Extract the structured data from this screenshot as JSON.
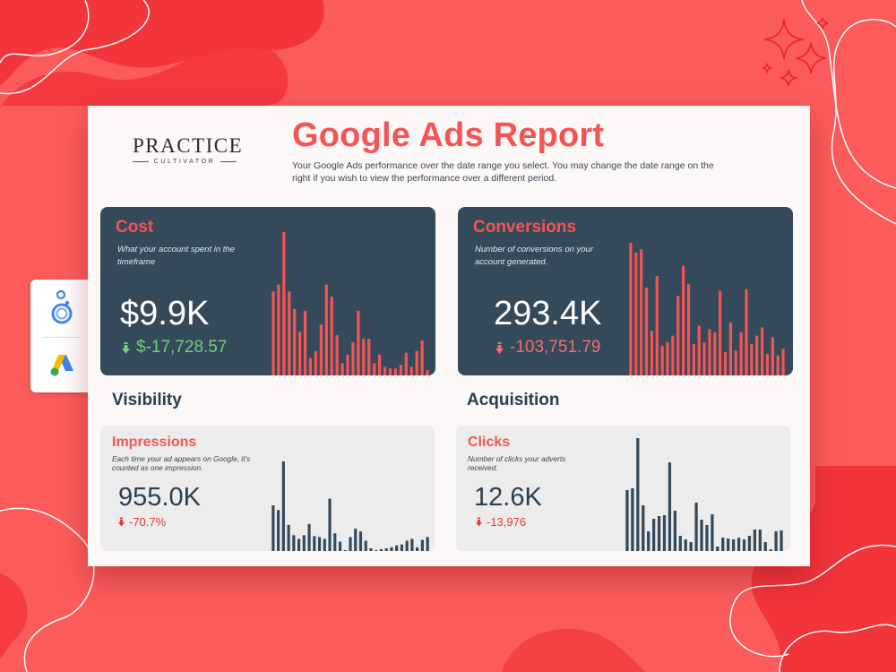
{
  "report": {
    "title": "Google Ads Report",
    "subtitle": "Your Google Ads performance over the date range you select. You may change the date range on the right if you wish to view the performance over a different period.",
    "logo": {
      "name": "PRACTICE",
      "tagline": "CULTIVATOR"
    }
  },
  "side_panel": {
    "icons": [
      "looker-studio-icon",
      "google-ads-icon"
    ]
  },
  "cards": {
    "cost": {
      "title": "Cost",
      "description": "What your account spent in the timeframe",
      "value": "$9.9K",
      "delta": "$-17,728.57",
      "delta_color": "#6fcf7a",
      "bars": [
        48,
        52,
        82,
        48,
        38,
        25,
        37,
        10,
        14,
        29,
        52,
        45,
        23,
        7,
        12,
        19,
        37,
        21,
        21,
        7,
        12,
        5,
        4,
        4,
        6,
        13,
        5,
        14,
        20,
        3
      ]
    },
    "conversions": {
      "title": "Conversions",
      "description": "Number of conversions on your account generated.",
      "value": "293.4K",
      "delta": "-103,751.79",
      "delta_color": "#f0706f",
      "bars": [
        80,
        74,
        76,
        53,
        27,
        60,
        18,
        20,
        24,
        48,
        66,
        55,
        19,
        30,
        20,
        28,
        26,
        51,
        14,
        32,
        15,
        26,
        52,
        19,
        24,
        29,
        13,
        23,
        12,
        16
      ]
    },
    "impressions": {
      "title": "Impressions",
      "description": "Each time your ad appears on Google, it's counted as one impression.",
      "value": "955.0K",
      "delta": "-70.7%",
      "bars": [
        49,
        44,
        96,
        28,
        17,
        13,
        17,
        29,
        16,
        15,
        13,
        56,
        19,
        10,
        1,
        15,
        24,
        21,
        11,
        3,
        1,
        2,
        3,
        4,
        6,
        7,
        11,
        13,
        4,
        12,
        15
      ]
    },
    "clicks": {
      "title": "Clicks",
      "description": "Number of clicks your adverts received.",
      "value": "12.6K",
      "delta": "-13,976",
      "bars": [
        68,
        70,
        126,
        51,
        22,
        36,
        39,
        40,
        99,
        45,
        17,
        13,
        10,
        54,
        35,
        29,
        41,
        5,
        15,
        14,
        13,
        15,
        13,
        17,
        24,
        24,
        10,
        2,
        22,
        23
      ]
    }
  },
  "sections": {
    "visibility": "Visibility",
    "acquisition": "Acquisition"
  },
  "colors": {
    "bar_red": "#f45554",
    "bar_dark": "#34495a",
    "accent": "#f45554",
    "background": "#fb5b5b"
  }
}
